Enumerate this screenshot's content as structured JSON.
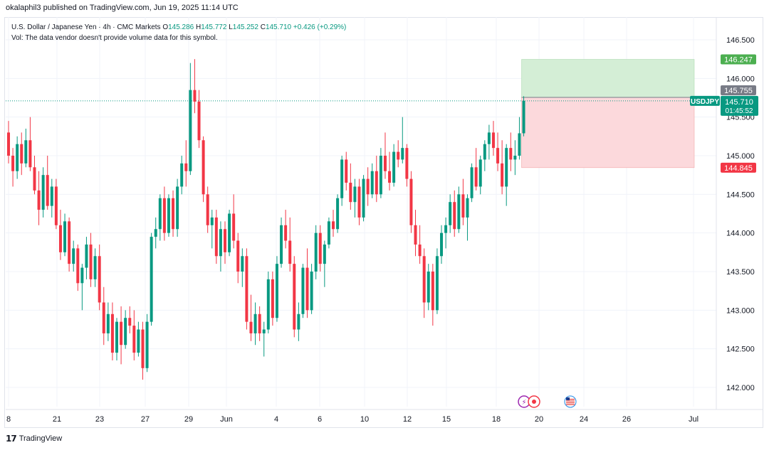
{
  "publisher": "okalaphil3 published on TradingView.com, Jun 19, 2025 11:14 UTC",
  "legend": {
    "symbol": "U.S. Dollar / Japanese Yen · 4h · CMC Markets",
    "o_label": "O",
    "o_value": "145.286",
    "h_label": "H",
    "h_value": "145.772",
    "l_label": "L",
    "l_value": "145.252",
    "c_label": "C",
    "c_value": "145.710",
    "change": "+0.426 (+0.29%)",
    "vol_note": "Vol: The data vendor doesn't provide volume data for this symbol."
  },
  "colors": {
    "up": "#089981",
    "down": "#f23645",
    "grid": "#f0f3fa",
    "text": "#131722",
    "axis": "#e0e3eb",
    "target_fill": "#d4eed6",
    "stop_fill": "#fcd9dc"
  },
  "footer_brand": "TradingView",
  "chart_data": {
    "type": "candlestick",
    "symbol": "USDJPY",
    "timeframe": "4h",
    "ylim": [
      141.9,
      146.6
    ],
    "y_ticks": [
      "146.500",
      "146.000",
      "145.500",
      "145.000",
      "144.500",
      "144.000",
      "143.500",
      "143.000",
      "142.500",
      "142.000"
    ],
    "x_ticks": [
      "8",
      "21",
      "23",
      "27",
      "29",
      "Jun",
      "4",
      "6",
      "10",
      "12",
      "15",
      "18",
      "20",
      "24",
      "26",
      "Jul"
    ],
    "price_labels": {
      "target": "146.247",
      "entry": "145.755",
      "last_symbol": "USDJPY",
      "last": "145.710",
      "countdown": "01:45:52",
      "stop": "144.845"
    },
    "position": {
      "entry": 145.755,
      "target": 146.247,
      "stop": 144.845,
      "start_bar": 119,
      "end_bar": 160
    },
    "candles": [
      [
        145.3,
        145.45,
        144.9,
        145.0
      ],
      [
        145.0,
        145.1,
        144.6,
        144.8
      ],
      [
        144.8,
        145.25,
        144.7,
        145.15
      ],
      [
        145.15,
        145.3,
        144.75,
        144.9
      ],
      [
        144.9,
        145.35,
        144.85,
        145.2
      ],
      [
        145.2,
        145.5,
        144.8,
        144.85
      ],
      [
        144.85,
        145.0,
        144.5,
        144.55
      ],
      [
        144.55,
        144.8,
        144.1,
        144.3
      ],
      [
        144.3,
        144.85,
        144.2,
        144.75
      ],
      [
        144.75,
        145.0,
        144.3,
        144.35
      ],
      [
        144.35,
        144.7,
        144.2,
        144.6
      ],
      [
        144.6,
        144.7,
        144.05,
        144.1
      ],
      [
        144.1,
        144.3,
        143.65,
        143.75
      ],
      [
        143.75,
        144.25,
        143.7,
        144.15
      ],
      [
        144.15,
        144.2,
        143.5,
        143.6
      ],
      [
        143.6,
        143.9,
        143.5,
        143.8
      ],
      [
        143.8,
        143.85,
        143.25,
        143.35
      ],
      [
        143.35,
        143.6,
        143.0,
        143.55
      ],
      [
        143.55,
        143.95,
        143.4,
        143.85
      ],
      [
        143.85,
        144.0,
        143.3,
        143.4
      ],
      [
        143.4,
        143.8,
        143.3,
        143.7
      ],
      [
        143.7,
        143.85,
        143.0,
        143.1
      ],
      [
        143.1,
        143.3,
        142.55,
        142.7
      ],
      [
        142.7,
        143.1,
        142.6,
        142.95
      ],
      [
        142.95,
        143.1,
        142.35,
        142.45
      ],
      [
        142.45,
        142.9,
        142.35,
        142.85
      ],
      [
        142.85,
        143.05,
        142.3,
        142.55
      ],
      [
        142.55,
        143.0,
        142.5,
        142.9
      ],
      [
        142.9,
        143.05,
        142.7,
        142.8
      ],
      [
        142.8,
        143.0,
        142.35,
        142.45
      ],
      [
        142.45,
        142.85,
        142.4,
        142.75
      ],
      [
        142.75,
        142.85,
        142.1,
        142.25
      ],
      [
        142.25,
        142.95,
        142.2,
        142.85
      ],
      [
        142.85,
        144.0,
        142.8,
        143.95
      ],
      [
        143.95,
        144.2,
        143.8,
        144.05
      ],
      [
        144.05,
        144.5,
        143.9,
        144.45
      ],
      [
        144.45,
        144.6,
        143.9,
        144.0
      ],
      [
        144.0,
        144.5,
        143.95,
        144.45
      ],
      [
        144.45,
        144.55,
        143.95,
        144.05
      ],
      [
        144.05,
        144.7,
        143.95,
        144.6
      ],
      [
        144.6,
        145.0,
        144.5,
        144.9
      ],
      [
        144.9,
        145.2,
        144.6,
        144.8
      ],
      [
        144.8,
        146.2,
        144.75,
        145.85
      ],
      [
        145.85,
        146.25,
        145.55,
        145.7
      ],
      [
        145.7,
        145.85,
        145.1,
        145.2
      ],
      [
        145.2,
        145.25,
        144.4,
        144.5
      ],
      [
        144.5,
        144.6,
        144.0,
        144.1
      ],
      [
        144.1,
        144.3,
        143.8,
        144.2
      ],
      [
        144.2,
        144.3,
        143.6,
        143.7
      ],
      [
        143.7,
        144.15,
        143.5,
        144.05
      ],
      [
        144.05,
        144.15,
        143.6,
        143.75
      ],
      [
        143.75,
        144.3,
        143.7,
        144.25
      ],
      [
        144.25,
        144.5,
        143.8,
        143.9
      ],
      [
        143.9,
        144.0,
        143.35,
        143.5
      ],
      [
        143.5,
        143.8,
        143.3,
        143.7
      ],
      [
        143.7,
        143.8,
        142.75,
        142.85
      ],
      [
        142.85,
        143.2,
        142.6,
        142.7
      ],
      [
        142.7,
        143.1,
        142.55,
        142.95
      ],
      [
        142.95,
        143.05,
        142.6,
        142.7
      ],
      [
        142.7,
        142.85,
        142.4,
        142.75
      ],
      [
        142.75,
        143.5,
        142.7,
        143.4
      ],
      [
        143.4,
        143.5,
        142.8,
        142.9
      ],
      [
        142.9,
        143.7,
        142.85,
        143.6
      ],
      [
        143.6,
        144.2,
        143.55,
        144.1
      ],
      [
        144.1,
        144.3,
        143.8,
        143.9
      ],
      [
        143.9,
        144.2,
        143.5,
        143.6
      ],
      [
        143.6,
        143.7,
        142.65,
        142.75
      ],
      [
        142.75,
        143.1,
        142.6,
        142.95
      ],
      [
        142.95,
        143.6,
        142.9,
        143.55
      ],
      [
        143.55,
        143.8,
        142.9,
        143.0
      ],
      [
        143.0,
        143.6,
        142.95,
        143.5
      ],
      [
        143.5,
        144.1,
        143.4,
        144.0
      ],
      [
        144.0,
        144.1,
        143.5,
        143.6
      ],
      [
        143.6,
        143.9,
        143.3,
        143.85
      ],
      [
        143.85,
        144.2,
        143.8,
        144.15
      ],
      [
        144.15,
        144.3,
        143.95,
        144.05
      ],
      [
        144.05,
        144.5,
        144.0,
        144.45
      ],
      [
        144.45,
        145.0,
        144.35,
        144.95
      ],
      [
        144.95,
        145.05,
        144.55,
        144.65
      ],
      [
        144.65,
        144.9,
        144.3,
        144.4
      ],
      [
        144.4,
        144.7,
        144.2,
        144.6
      ],
      [
        144.6,
        144.7,
        144.1,
        144.2
      ],
      [
        144.2,
        144.75,
        144.15,
        144.7
      ],
      [
        144.7,
        144.85,
        144.35,
        144.5
      ],
      [
        144.5,
        144.9,
        144.45,
        144.8
      ],
      [
        144.8,
        145.0,
        144.4,
        144.5
      ],
      [
        144.5,
        145.1,
        144.45,
        145.0
      ],
      [
        145.0,
        145.3,
        144.7,
        144.8
      ],
      [
        144.8,
        145.05,
        144.55,
        144.65
      ],
      [
        144.65,
        145.15,
        144.6,
        145.05
      ],
      [
        145.05,
        145.2,
        144.85,
        144.95
      ],
      [
        144.95,
        145.5,
        144.9,
        145.1
      ],
      [
        145.1,
        145.15,
        144.6,
        144.7
      ],
      [
        144.7,
        144.8,
        144.0,
        144.1
      ],
      [
        144.1,
        144.3,
        143.7,
        143.85
      ],
      [
        143.85,
        144.1,
        143.6,
        143.7
      ],
      [
        143.7,
        143.8,
        142.9,
        143.1
      ],
      [
        143.1,
        143.6,
        143.0,
        143.5
      ],
      [
        143.5,
        143.6,
        142.8,
        143.0
      ],
      [
        143.0,
        143.8,
        142.95,
        143.7
      ],
      [
        143.7,
        144.1,
        143.6,
        144.0
      ],
      [
        144.0,
        144.2,
        143.8,
        144.1
      ],
      [
        144.1,
        144.5,
        144.0,
        144.4
      ],
      [
        144.4,
        144.55,
        143.95,
        144.05
      ],
      [
        144.05,
        144.6,
        144.0,
        144.5
      ],
      [
        144.5,
        144.7,
        144.1,
        144.2
      ],
      [
        144.2,
        144.5,
        143.9,
        144.45
      ],
      [
        144.45,
        144.9,
        144.4,
        144.85
      ],
      [
        144.85,
        145.1,
        144.55,
        144.6
      ],
      [
        144.6,
        145.0,
        144.5,
        144.95
      ],
      [
        144.95,
        145.2,
        144.8,
        145.15
      ],
      [
        145.15,
        145.4,
        144.95,
        145.3
      ],
      [
        145.3,
        145.45,
        145.0,
        145.1
      ],
      [
        145.1,
        145.3,
        144.8,
        144.9
      ],
      [
        144.9,
        145.2,
        144.5,
        144.6
      ],
      [
        144.6,
        145.15,
        144.35,
        145.1
      ],
      [
        145.1,
        145.3,
        144.8,
        144.95
      ],
      [
        144.95,
        145.2,
        144.75,
        145.0
      ],
      [
        145.0,
        145.5,
        144.95,
        145.29
      ],
      [
        145.29,
        145.77,
        145.25,
        145.71
      ]
    ]
  }
}
